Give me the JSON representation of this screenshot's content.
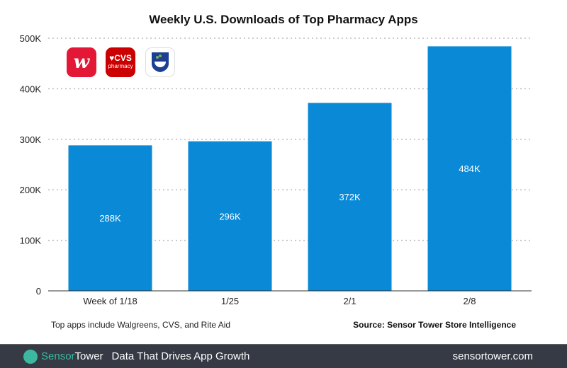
{
  "chart_data": {
    "type": "bar",
    "title": "Weekly U.S. Downloads of Top Pharmacy Apps",
    "categories": [
      "Week of 1/18",
      "1/25",
      "2/1",
      "2/8"
    ],
    "values": [
      288,
      296,
      372,
      484
    ],
    "data_labels": [
      "288K",
      "296K",
      "372K",
      "484K"
    ],
    "yticks": [
      0,
      100,
      200,
      300,
      400,
      500
    ],
    "ytick_labels": [
      "0",
      "100K",
      "200K",
      "300K",
      "400K",
      "500K"
    ],
    "ylim": [
      0,
      500
    ],
    "grid": true,
    "bar_color": "#0a8ad6"
  },
  "logos": [
    "Walgreens",
    "CVS pharmacy",
    "Rite Aid"
  ],
  "note": "Top apps include Walgreens, CVS, and Rite Aid",
  "source": "Source: Sensor Tower Store Intelligence",
  "watermark": "SensorTower",
  "footer": {
    "brand_a": "Sensor",
    "brand_b": "Tower",
    "tagline": "Data That Drives App Growth",
    "url": "sensortower.com"
  }
}
